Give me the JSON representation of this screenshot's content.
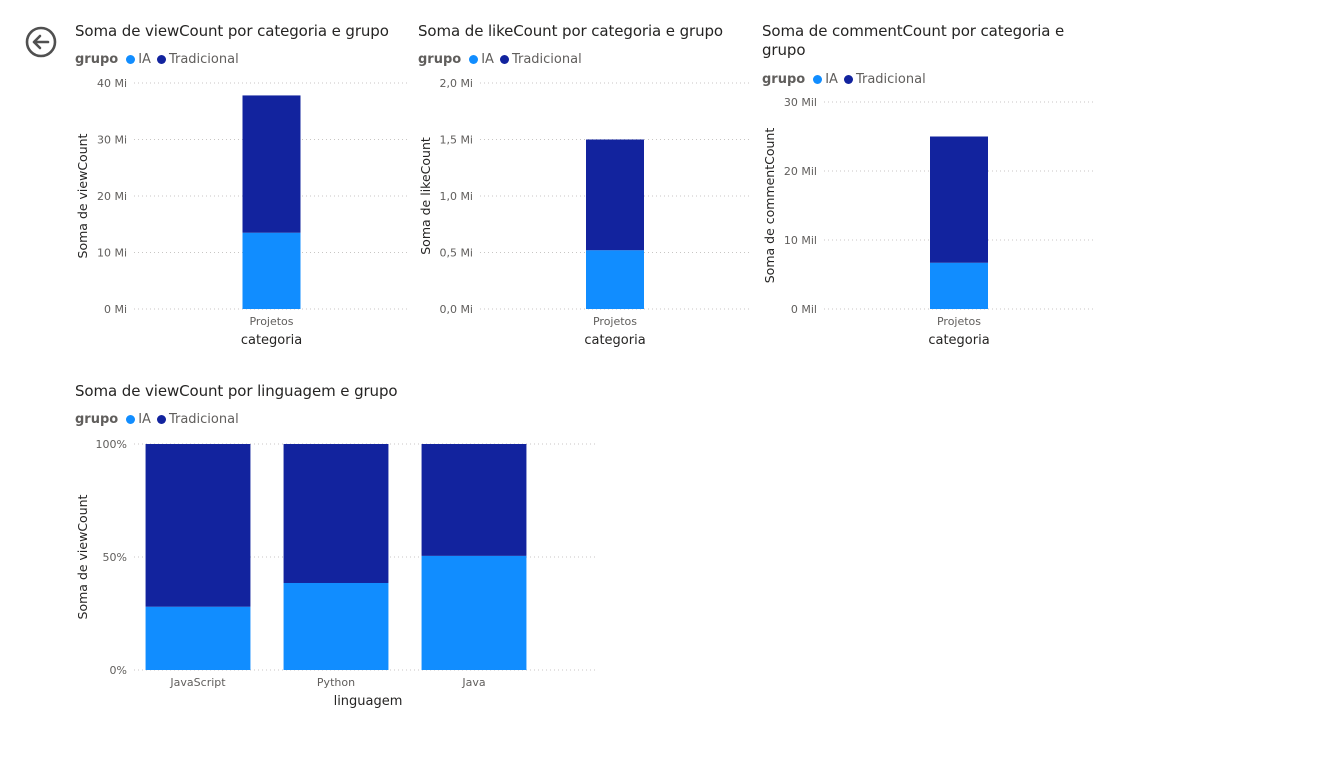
{
  "colors": {
    "IA": "#118dff",
    "Tradicional": "#12239e",
    "grid": "#c8c6c4",
    "tick": "#605e5c",
    "axis_title": "#252423"
  },
  "back_button": {
    "icon": "back-arrow-icon"
  },
  "chart_data": [
    {
      "type": "bar",
      "stacked": true,
      "title": "Soma de viewCount por categoria e grupo",
      "legend": {
        "title": "grupo",
        "items": [
          "IA",
          "Tradicional"
        ],
        "placement": "top-left"
      },
      "xlabel": "categoria",
      "ylabel": "Soma de viewCount",
      "categories": [
        "Projetos"
      ],
      "series": [
        {
          "name": "IA",
          "values": [
            13.5
          ]
        },
        {
          "name": "Tradicional",
          "values": [
            24.3
          ]
        }
      ],
      "y_unit": "Mi",
      "ylim": [
        0,
        40
      ],
      "yticks": [
        0,
        10,
        20,
        30,
        40
      ],
      "ytick_labels": [
        "0 Mi",
        "10 Mi",
        "20 Mi",
        "30 Mi",
        "40 Mi"
      ],
      "grid": true
    },
    {
      "type": "bar",
      "stacked": true,
      "title": "Soma de likeCount por categoria e grupo",
      "legend": {
        "title": "grupo",
        "items": [
          "IA",
          "Tradicional"
        ],
        "placement": "top-left"
      },
      "xlabel": "categoria",
      "ylabel": "Soma de likeCount",
      "categories": [
        "Projetos"
      ],
      "series": [
        {
          "name": "IA",
          "values": [
            0.52
          ]
        },
        {
          "name": "Tradicional",
          "values": [
            0.98
          ]
        }
      ],
      "y_unit": "Mi",
      "ylim": [
        0,
        2
      ],
      "yticks": [
        0,
        0.5,
        1.0,
        1.5,
        2.0
      ],
      "ytick_labels": [
        "0,0 Mi",
        "0,5 Mi",
        "1,0 Mi",
        "1,5 Mi",
        "2,0 Mi"
      ],
      "grid": true
    },
    {
      "type": "bar",
      "stacked": true,
      "title": "Soma de commentCount por categoria e grupo",
      "legend": {
        "title": "grupo",
        "items": [
          "IA",
          "Tradicional"
        ],
        "placement": "top-left"
      },
      "xlabel": "categoria",
      "ylabel": "Soma de commentCount",
      "categories": [
        "Projetos"
      ],
      "series": [
        {
          "name": "IA",
          "values": [
            6.7
          ]
        },
        {
          "name": "Tradicional",
          "values": [
            18.3
          ]
        }
      ],
      "y_unit": "Mil",
      "ylim": [
        0,
        30
      ],
      "yticks": [
        0,
        10,
        20,
        30
      ],
      "ytick_labels": [
        "0 Mil",
        "10 Mil",
        "20 Mil",
        "30 Mil"
      ],
      "grid": true
    },
    {
      "type": "bar",
      "stacked": true,
      "percent": true,
      "title": "Soma de viewCount por linguagem e grupo",
      "legend": {
        "title": "grupo",
        "items": [
          "IA",
          "Tradicional"
        ],
        "placement": "top-left"
      },
      "xlabel": "linguagem",
      "ylabel": "Soma de viewCount",
      "categories": [
        "JavaScript",
        "Python",
        "Java"
      ],
      "series": [
        {
          "name": "IA",
          "values": [
            28,
            38.5,
            50.5
          ]
        },
        {
          "name": "Tradicional",
          "values": [
            72,
            61.5,
            49.5
          ]
        }
      ],
      "ylim": [
        0,
        100
      ],
      "yticks": [
        0,
        50,
        100
      ],
      "ytick_labels": [
        "0%",
        "50%",
        "100%"
      ],
      "grid": true
    }
  ]
}
